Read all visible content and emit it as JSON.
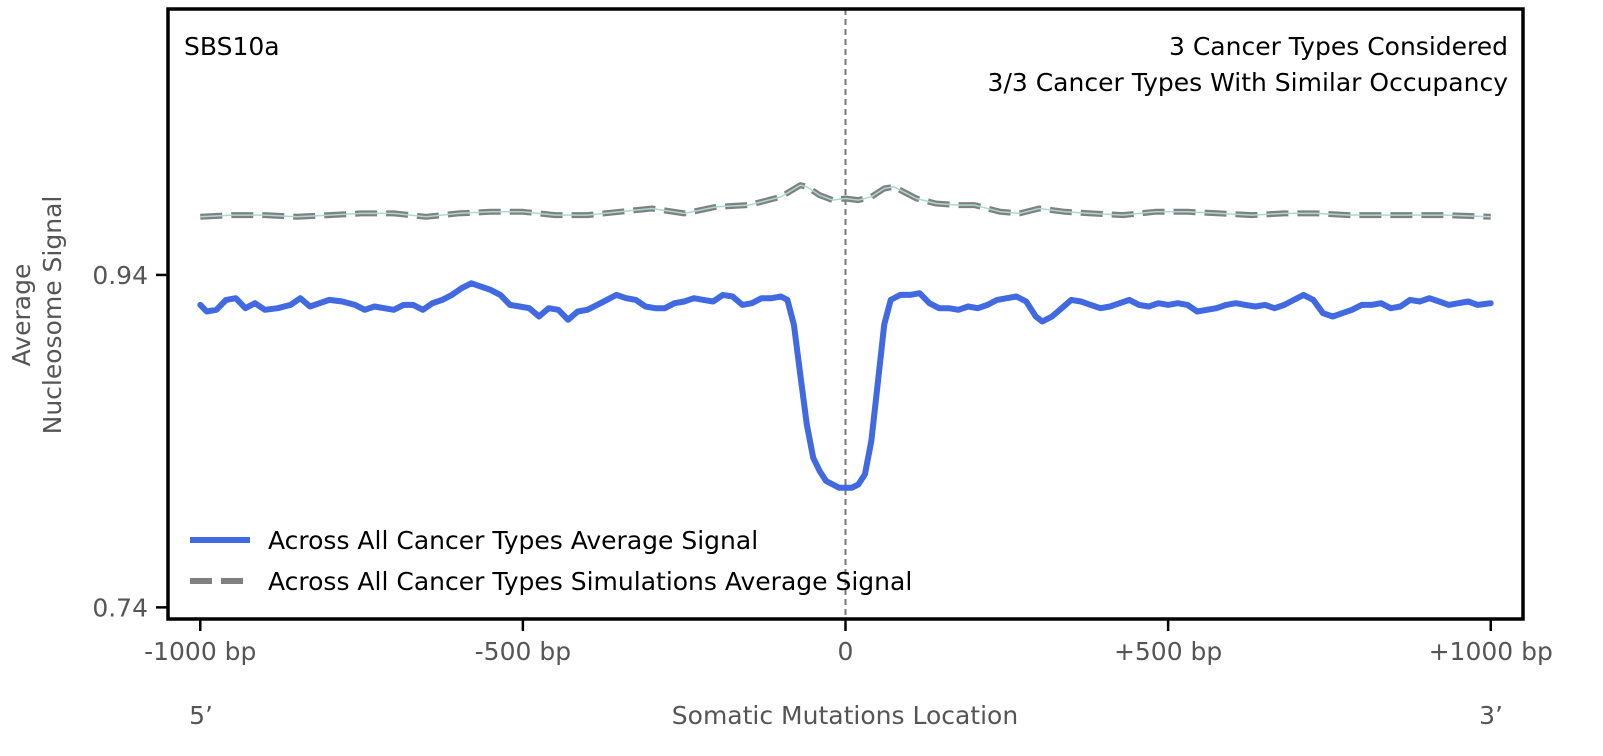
{
  "chart_data": {
    "type": "line",
    "panel_label": "SBS10a",
    "annotations": [
      "3 Cancer Types Considered",
      "3/3 Cancer Types With Similar Occupancy"
    ],
    "xlabel": "Somatic Mutations Location",
    "ylabel_lines": [
      "Average",
      "Nucleosome Signal"
    ],
    "x_end_labels": {
      "left": "5’",
      "right": "3’"
    },
    "xlim": [
      -1050,
      1050
    ],
    "ylim": [
      0.733,
      1.1
    ],
    "x_ticks": [
      {
        "value": -1000,
        "label": "-1000 bp"
      },
      {
        "value": -500,
        "label": "-500 bp"
      },
      {
        "value": 0,
        "label": "0"
      },
      {
        "value": 500,
        "label": "+500 bp"
      },
      {
        "value": 1000,
        "label": "+1000 bp"
      }
    ],
    "y_ticks": [
      {
        "value": 0.94,
        "label": "0.94"
      },
      {
        "value": 0.74,
        "label": "0.74"
      }
    ],
    "grid": false,
    "vline_x": 0,
    "legend_position": "bottom-left",
    "series": [
      {
        "name": "Across All Cancer Types Average Signal",
        "color": "#4169E1",
        "style": "solid",
        "points": [
          [
            -1000,
            0.922
          ],
          [
            -990,
            0.918
          ],
          [
            -975,
            0.919
          ],
          [
            -960,
            0.925
          ],
          [
            -945,
            0.926
          ],
          [
            -930,
            0.92
          ],
          [
            -915,
            0.923
          ],
          [
            -900,
            0.919
          ],
          [
            -880,
            0.92
          ],
          [
            -860,
            0.922
          ],
          [
            -845,
            0.926
          ],
          [
            -830,
            0.921
          ],
          [
            -815,
            0.923
          ],
          [
            -800,
            0.925
          ],
          [
            -780,
            0.924
          ],
          [
            -760,
            0.922
          ],
          [
            -745,
            0.919
          ],
          [
            -730,
            0.921
          ],
          [
            -715,
            0.92
          ],
          [
            -700,
            0.919
          ],
          [
            -685,
            0.922
          ],
          [
            -670,
            0.922
          ],
          [
            -655,
            0.919
          ],
          [
            -640,
            0.923
          ],
          [
            -625,
            0.925
          ],
          [
            -610,
            0.928
          ],
          [
            -595,
            0.932
          ],
          [
            -580,
            0.935
          ],
          [
            -565,
            0.933
          ],
          [
            -550,
            0.931
          ],
          [
            -535,
            0.928
          ],
          [
            -520,
            0.922
          ],
          [
            -505,
            0.921
          ],
          [
            -490,
            0.92
          ],
          [
            -475,
            0.915
          ],
          [
            -460,
            0.92
          ],
          [
            -445,
            0.919
          ],
          [
            -430,
            0.913
          ],
          [
            -415,
            0.918
          ],
          [
            -400,
            0.919
          ],
          [
            -385,
            0.922
          ],
          [
            -370,
            0.925
          ],
          [
            -355,
            0.928
          ],
          [
            -340,
            0.926
          ],
          [
            -325,
            0.925
          ],
          [
            -310,
            0.921
          ],
          [
            -295,
            0.92
          ],
          [
            -280,
            0.92
          ],
          [
            -265,
            0.923
          ],
          [
            -250,
            0.924
          ],
          [
            -235,
            0.926
          ],
          [
            -220,
            0.925
          ],
          [
            -205,
            0.924
          ],
          [
            -190,
            0.928
          ],
          [
            -175,
            0.927
          ],
          [
            -160,
            0.922
          ],
          [
            -145,
            0.923
          ],
          [
            -130,
            0.926
          ],
          [
            -115,
            0.926
          ],
          [
            -100,
            0.927
          ],
          [
            -90,
            0.925
          ],
          [
            -80,
            0.91
          ],
          [
            -70,
            0.88
          ],
          [
            -60,
            0.85
          ],
          [
            -50,
            0.83
          ],
          [
            -40,
            0.822
          ],
          [
            -30,
            0.816
          ],
          [
            -20,
            0.814
          ],
          [
            -10,
            0.812
          ],
          [
            0,
            0.812
          ],
          [
            10,
            0.812
          ],
          [
            20,
            0.814
          ],
          [
            30,
            0.82
          ],
          [
            40,
            0.84
          ],
          [
            50,
            0.875
          ],
          [
            60,
            0.91
          ],
          [
            70,
            0.925
          ],
          [
            85,
            0.928
          ],
          [
            100,
            0.928
          ],
          [
            115,
            0.929
          ],
          [
            130,
            0.923
          ],
          [
            145,
            0.92
          ],
          [
            160,
            0.92
          ],
          [
            175,
            0.919
          ],
          [
            190,
            0.921
          ],
          [
            205,
            0.92
          ],
          [
            220,
            0.922
          ],
          [
            235,
            0.925
          ],
          [
            250,
            0.926
          ],
          [
            265,
            0.927
          ],
          [
            280,
            0.924
          ],
          [
            295,
            0.915
          ],
          [
            305,
            0.912
          ],
          [
            320,
            0.915
          ],
          [
            335,
            0.92
          ],
          [
            350,
            0.925
          ],
          [
            365,
            0.924
          ],
          [
            380,
            0.922
          ],
          [
            395,
            0.92
          ],
          [
            410,
            0.921
          ],
          [
            425,
            0.923
          ],
          [
            440,
            0.925
          ],
          [
            455,
            0.922
          ],
          [
            470,
            0.921
          ],
          [
            485,
            0.923
          ],
          [
            500,
            0.922
          ],
          [
            515,
            0.923
          ],
          [
            530,
            0.922
          ],
          [
            545,
            0.918
          ],
          [
            560,
            0.919
          ],
          [
            575,
            0.92
          ],
          [
            590,
            0.922
          ],
          [
            605,
            0.923
          ],
          [
            620,
            0.922
          ],
          [
            635,
            0.921
          ],
          [
            650,
            0.922
          ],
          [
            665,
            0.92
          ],
          [
            680,
            0.922
          ],
          [
            695,
            0.925
          ],
          [
            710,
            0.928
          ],
          [
            725,
            0.925
          ],
          [
            740,
            0.917
          ],
          [
            755,
            0.915
          ],
          [
            770,
            0.917
          ],
          [
            785,
            0.919
          ],
          [
            800,
            0.922
          ],
          [
            815,
            0.922
          ],
          [
            830,
            0.923
          ],
          [
            845,
            0.92
          ],
          [
            860,
            0.921
          ],
          [
            875,
            0.925
          ],
          [
            890,
            0.924
          ],
          [
            905,
            0.926
          ],
          [
            920,
            0.924
          ],
          [
            935,
            0.922
          ],
          [
            950,
            0.923
          ],
          [
            965,
            0.924
          ],
          [
            980,
            0.922
          ],
          [
            1000,
            0.923
          ]
        ]
      },
      {
        "name": "Across All Cancer Types Simulations Average Signal",
        "color": "#808080",
        "style": "dashed",
        "points": [
          [
            -1000,
            0.975
          ],
          [
            -950,
            0.976
          ],
          [
            -900,
            0.976
          ],
          [
            -850,
            0.975
          ],
          [
            -800,
            0.976
          ],
          [
            -750,
            0.977
          ],
          [
            -700,
            0.977
          ],
          [
            -650,
            0.975
          ],
          [
            -600,
            0.977
          ],
          [
            -550,
            0.978
          ],
          [
            -500,
            0.978
          ],
          [
            -450,
            0.976
          ],
          [
            -400,
            0.976
          ],
          [
            -350,
            0.978
          ],
          [
            -300,
            0.98
          ],
          [
            -250,
            0.977
          ],
          [
            -200,
            0.981
          ],
          [
            -150,
            0.982
          ],
          [
            -100,
            0.987
          ],
          [
            -70,
            0.994
          ],
          [
            -60,
            0.993
          ],
          [
            -40,
            0.988
          ],
          [
            -20,
            0.985
          ],
          [
            0,
            0.986
          ],
          [
            20,
            0.985
          ],
          [
            40,
            0.987
          ],
          [
            60,
            0.992
          ],
          [
            75,
            0.993
          ],
          [
            90,
            0.99
          ],
          [
            110,
            0.986
          ],
          [
            140,
            0.983
          ],
          [
            175,
            0.982
          ],
          [
            200,
            0.982
          ],
          [
            240,
            0.978
          ],
          [
            270,
            0.977
          ],
          [
            300,
            0.98
          ],
          [
            340,
            0.978
          ],
          [
            380,
            0.977
          ],
          [
            430,
            0.976
          ],
          [
            480,
            0.978
          ],
          [
            530,
            0.978
          ],
          [
            580,
            0.977
          ],
          [
            630,
            0.976
          ],
          [
            680,
            0.977
          ],
          [
            730,
            0.977
          ],
          [
            780,
            0.976
          ],
          [
            830,
            0.976
          ],
          [
            880,
            0.976
          ],
          [
            930,
            0.976
          ],
          [
            1000,
            0.975
          ]
        ]
      }
    ]
  }
}
